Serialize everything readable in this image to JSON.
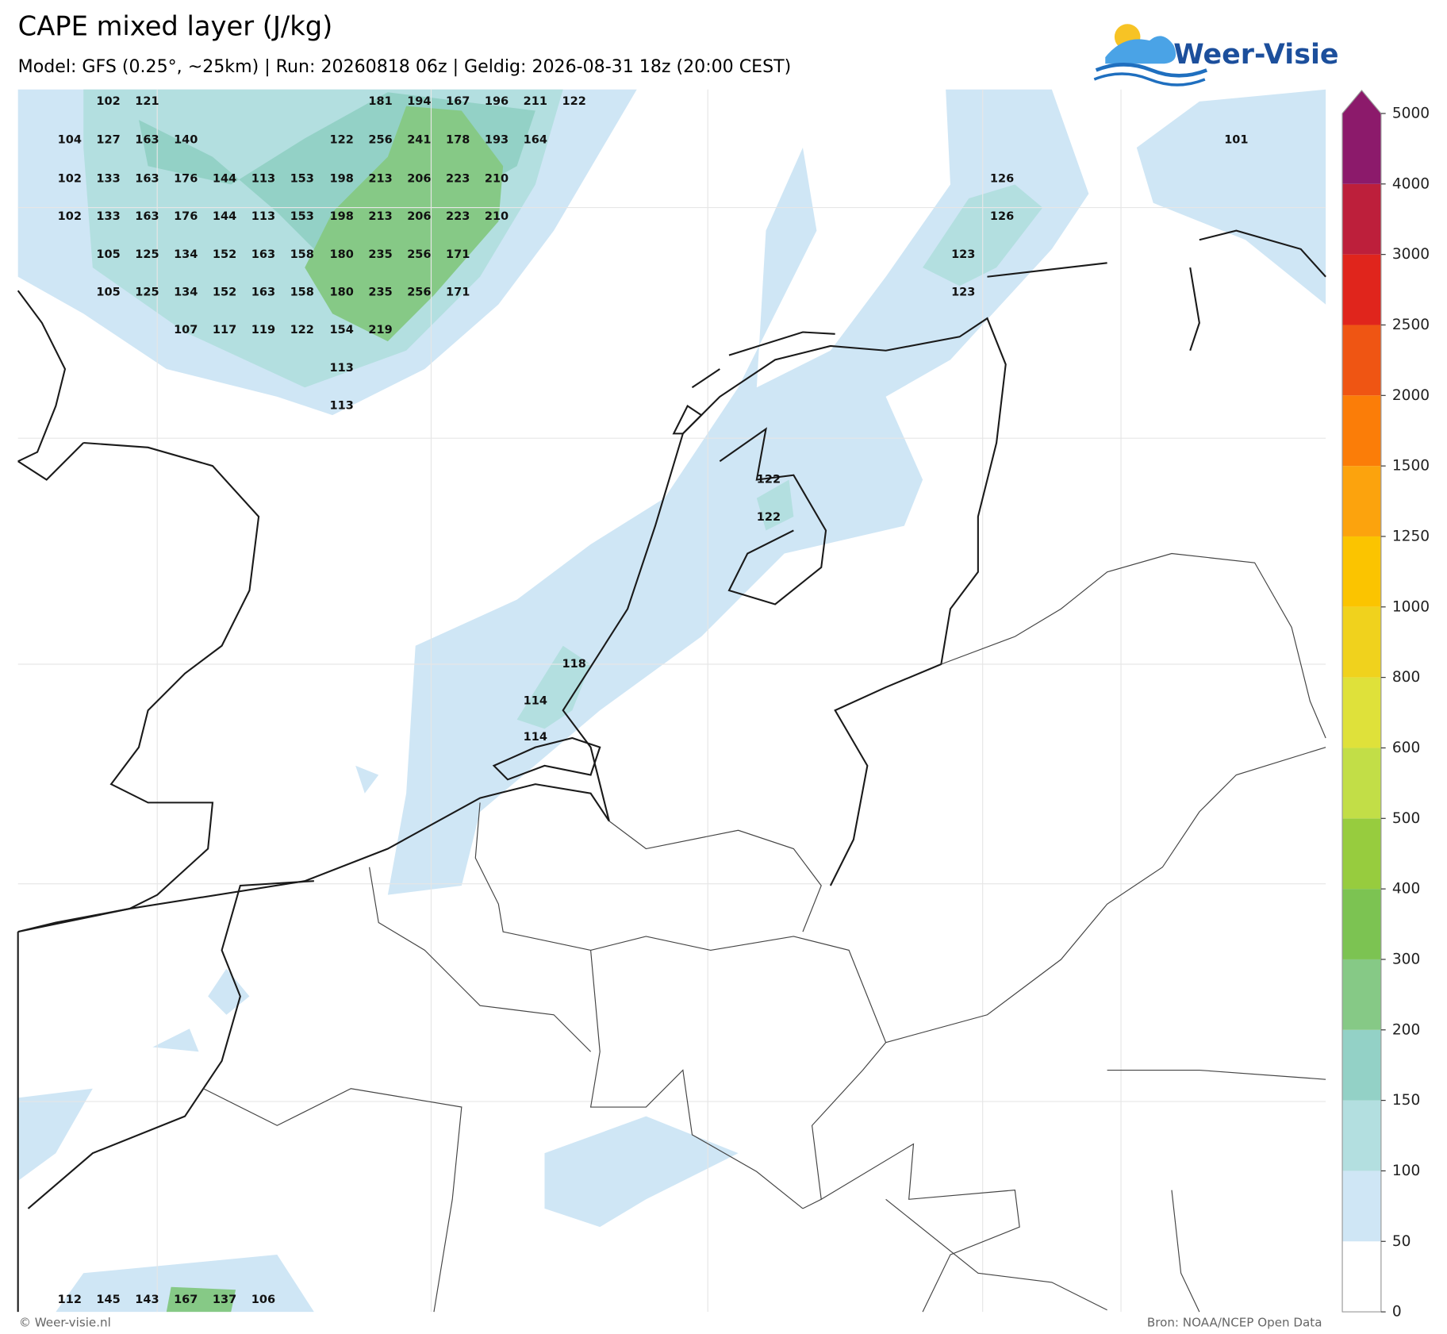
{
  "header": {
    "title": "CAPE mixed layer (J/kg)",
    "subtitle": "Model: GFS (0.25°, ~25km)  |  Run: 20260818 06z  |  Geldig: 2026-08-31 18z (20:00 CEST)",
    "logo": "Weer-Visie"
  },
  "map": {
    "labels": [
      102,
      121,
      181,
      194,
      167,
      196,
      211,
      122,
      104,
      127,
      163,
      140,
      122,
      256,
      241,
      178,
      193,
      164,
      101,
      102,
      133,
      163,
      176,
      144,
      113,
      153,
      198,
      213,
      206,
      223,
      210,
      126,
      102,
      133,
      163,
      176,
      144,
      113,
      153,
      198,
      213,
      206,
      223,
      210,
      126,
      105,
      125,
      134,
      152,
      163,
      158,
      180,
      235,
      256,
      171,
      123,
      105,
      125,
      134,
      152,
      163,
      158,
      180,
      235,
      256,
      171,
      123,
      107,
      117,
      119,
      122,
      154,
      219,
      113,
      113,
      122,
      122,
      118,
      114,
      114,
      112,
      145,
      143,
      167,
      137,
      106
    ]
  },
  "colorbar": {
    "ticks": [
      0,
      50,
      100,
      150,
      200,
      300,
      400,
      500,
      600,
      800,
      1000,
      1250,
      1500,
      2000,
      2500,
      3000,
      4000,
      5000
    ],
    "colors": [
      "#ffffff",
      "#cfe6f5",
      "#b3dfe0",
      "#93d1c6",
      "#86c986",
      "#7cc352",
      "#97cc3e",
      "#c2de47",
      "#dfe13a",
      "#f0d21d",
      "#fbc400",
      "#fca30d",
      "#fb7d08",
      "#ef5513",
      "#e0251c",
      "#bd1f3b",
      "#8c1a6b"
    ]
  },
  "footer": {
    "left": "© Weer-visie.nl",
    "right": "Bron: NOAA/NCEP Open Data"
  }
}
